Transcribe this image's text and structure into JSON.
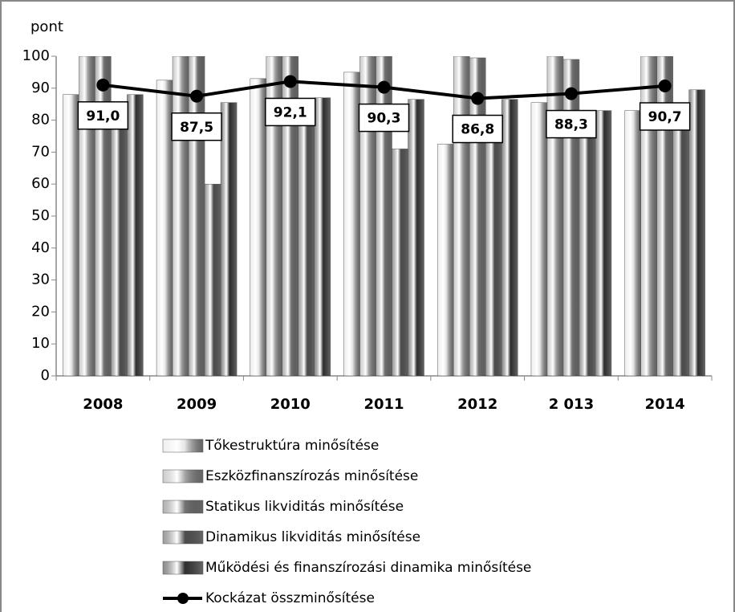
{
  "chart_data": {
    "type": "bar_line",
    "y_label": "pont",
    "categories": [
      "2008",
      "2009",
      "2010",
      "2011",
      "2012",
      "2 013",
      "2014"
    ],
    "ylim": [
      0,
      100
    ],
    "yticks": [
      0,
      10,
      20,
      30,
      40,
      50,
      60,
      70,
      80,
      90,
      100
    ],
    "series": [
      {
        "name": "Tőkestruktúra minősítése",
        "color": "#e4e4e4",
        "values": [
          88,
          92.5,
          93,
          95,
          72.5,
          85.5,
          83
        ]
      },
      {
        "name": "Eszközfinanszírozás minősítése",
        "color": "#a6a6a6",
        "values": [
          100,
          100,
          100,
          100,
          100,
          100,
          100
        ]
      },
      {
        "name": "Statikus likviditás minősítése",
        "color": "#737373",
        "values": [
          100,
          100,
          100,
          100,
          99.5,
          99,
          100
        ]
      },
      {
        "name": "Dinamikus likviditás minősítése",
        "color": "#4d4d4d",
        "values": [
          80,
          60,
          80,
          71,
          80,
          75,
          80
        ]
      },
      {
        "name": "Működési és finanszírozási dinamika minősítése",
        "color": "#2e2e2e",
        "values": [
          88,
          85.5,
          87,
          86.5,
          86.5,
          83,
          89.5
        ]
      },
      {
        "name": "Kockázat összminősítése",
        "color": "#000000",
        "kind": "line",
        "values": [
          91.0,
          87.5,
          92.1,
          90.3,
          86.8,
          88.3,
          90.7
        ],
        "value_labels": [
          "91,0",
          "87,5",
          "92,1",
          "90,3",
          "86,8",
          "88,3",
          "90,7"
        ]
      }
    ]
  }
}
